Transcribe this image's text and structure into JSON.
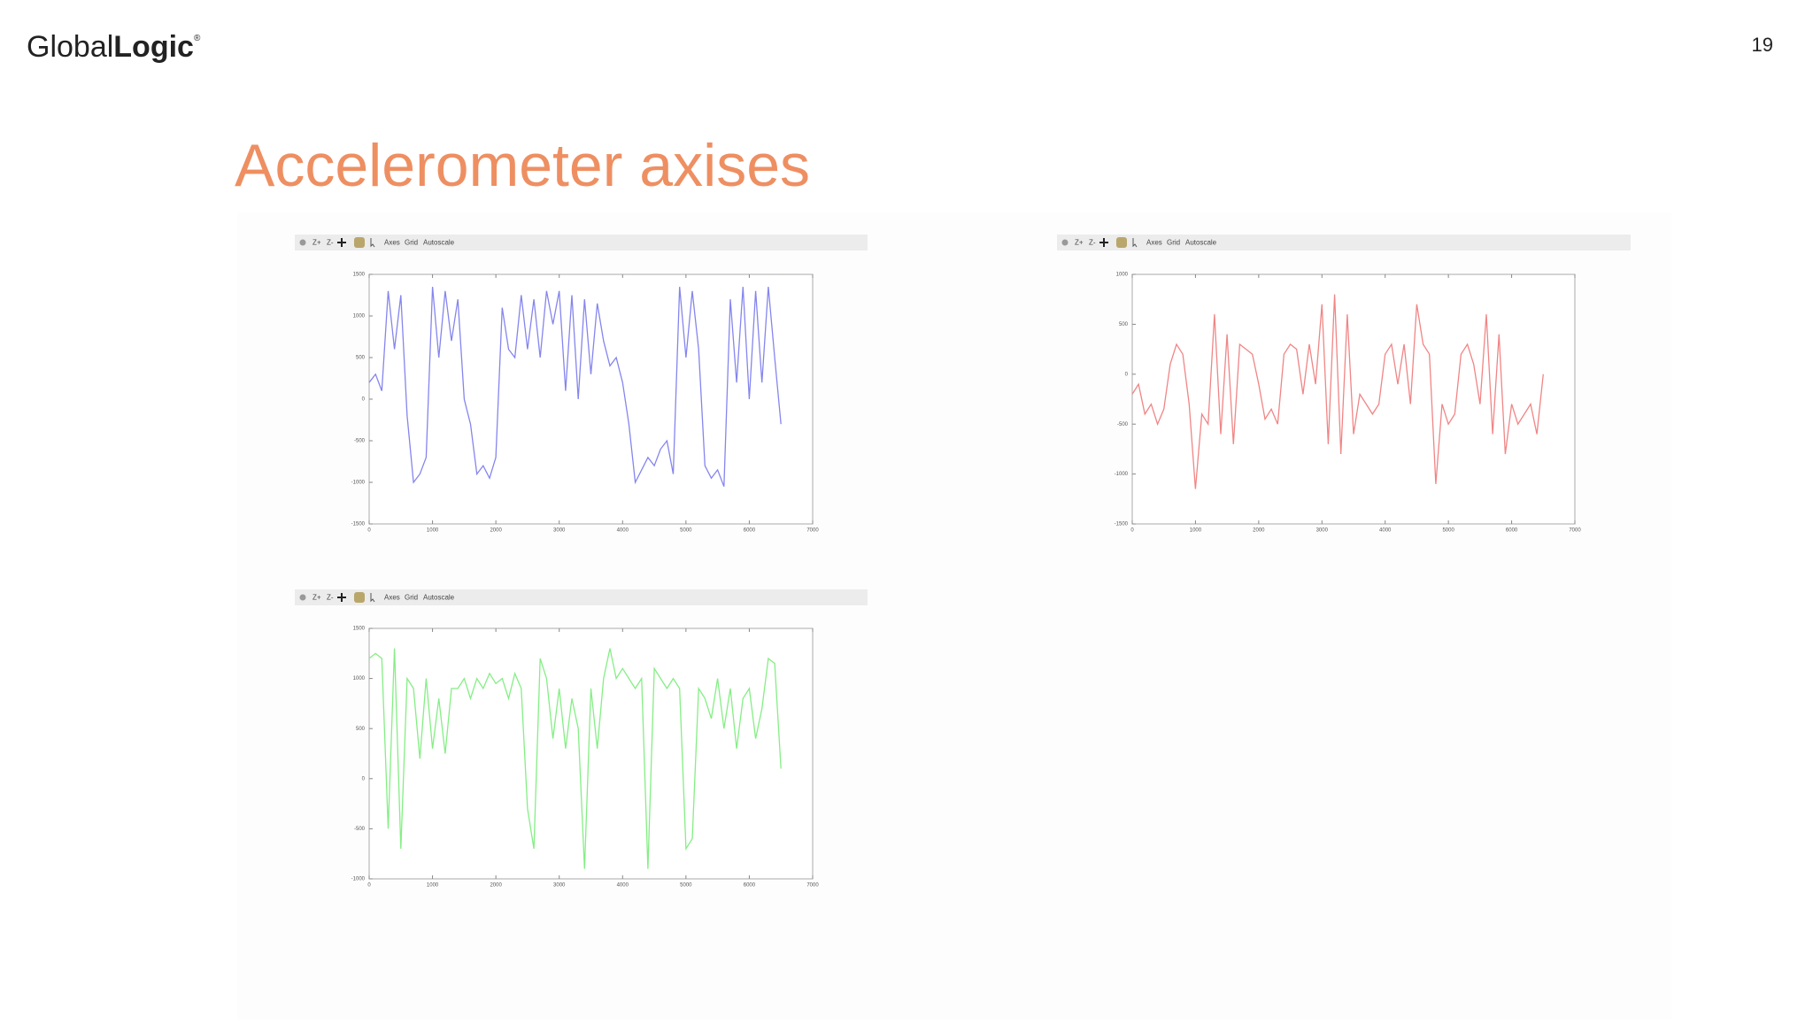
{
  "slide": {
    "logo": [
      "Global",
      "Logic"
    ],
    "logo_mark": "®",
    "page_number": "19",
    "title": "Accelerometer axises"
  },
  "chart_data": [
    {
      "type": "line",
      "toolbar": [
        "Z+",
        "Z-",
        "Axes",
        "Grid",
        "Autoscale"
      ],
      "x": [
        0,
        100,
        200,
        300,
        400,
        500,
        600,
        700,
        800,
        900,
        1000,
        1100,
        1200,
        1300,
        1400,
        1500,
        1600,
        1700,
        1800,
        1900,
        2000,
        2100,
        2200,
        2300,
        2400,
        2500,
        2600,
        2700,
        2800,
        2900,
        3000,
        3100,
        3200,
        3300,
        3400,
        3500,
        3600,
        3700,
        3800,
        3900,
        4000,
        4100,
        4200,
        4300,
        4400,
        4500,
        4600,
        4700,
        4800,
        4900,
        5000,
        5100,
        5200,
        5300,
        5400,
        5500,
        5600,
        5700,
        5800,
        5900,
        6000,
        6100,
        6200,
        6300,
        6400,
        6500
      ],
      "series": [
        {
          "color": "#8585ee",
          "values": [
            200,
            300,
            100,
            1300,
            600,
            1250,
            -200,
            -1000,
            -900,
            -700,
            1350,
            500,
            1300,
            700,
            1200,
            0,
            -300,
            -900,
            -800,
            -950,
            -700,
            1100,
            600,
            500,
            1250,
            600,
            1200,
            500,
            1300,
            900,
            1300,
            100,
            1250,
            0,
            1200,
            300,
            1150,
            700,
            400,
            500,
            200,
            -300,
            -1000,
            -850,
            -700,
            -800,
            -600,
            -500,
            -900,
            1350,
            500,
            1300,
            600,
            -800,
            -950,
            -850,
            -1050,
            1200,
            200,
            1350,
            0,
            1300,
            200,
            1350,
            500,
            -300
          ]
        }
      ],
      "xlim": [
        0,
        7000
      ],
      "xticks": [
        0,
        1000,
        2000,
        3000,
        4000,
        5000,
        6000,
        7000
      ],
      "ylim": [
        -1500,
        1500
      ],
      "yticks": [
        -1500,
        -1000,
        -500,
        0,
        500,
        1000,
        1500
      ],
      "grid": false
    },
    {
      "type": "line",
      "toolbar": [
        "Z+",
        "Z-",
        "Axes",
        "Grid",
        "Autoscale"
      ],
      "x": [
        0,
        100,
        200,
        300,
        400,
        500,
        600,
        700,
        800,
        900,
        1000,
        1100,
        1200,
        1300,
        1400,
        1500,
        1600,
        1700,
        1800,
        1900,
        2000,
        2100,
        2200,
        2300,
        2400,
        2500,
        2600,
        2700,
        2800,
        2900,
        3000,
        3100,
        3200,
        3300,
        3400,
        3500,
        3600,
        3700,
        3800,
        3900,
        4000,
        4100,
        4200,
        4300,
        4400,
        4500,
        4600,
        4700,
        4800,
        4900,
        5000,
        5100,
        5200,
        5300,
        5400,
        5500,
        5600,
        5700,
        5800,
        5900,
        6000,
        6100,
        6200,
        6300,
        6400,
        6500
      ],
      "series": [
        {
          "color": "#f08585",
          "values": [
            -200,
            -100,
            -400,
            -300,
            -500,
            -350,
            100,
            300,
            200,
            -300,
            -1150,
            -400,
            -500,
            600,
            -600,
            400,
            -700,
            300,
            250,
            200,
            -100,
            -450,
            -350,
            -500,
            200,
            300,
            250,
            -200,
            300,
            -100,
            700,
            -700,
            800,
            -800,
            600,
            -600,
            -200,
            -300,
            -400,
            -300,
            200,
            300,
            -100,
            300,
            -300,
            700,
            300,
            200,
            -1100,
            -300,
            -500,
            -400,
            200,
            300,
            100,
            -300,
            600,
            -600,
            400,
            -800,
            -300,
            -500,
            -400,
            -300,
            -600,
            0
          ]
        }
      ],
      "xlim": [
        0,
        7000
      ],
      "xticks": [
        0,
        1000,
        2000,
        3000,
        4000,
        5000,
        6000,
        7000
      ],
      "ylim": [
        -1500,
        1000
      ],
      "yticks": [
        -1500,
        -1000,
        -500,
        0,
        500,
        1000
      ],
      "grid": false
    },
    {
      "type": "line",
      "toolbar": [
        "Z+",
        "Z-",
        "Axes",
        "Grid",
        "Autoscale"
      ],
      "x": [
        0,
        100,
        200,
        300,
        400,
        500,
        600,
        700,
        800,
        900,
        1000,
        1100,
        1200,
        1300,
        1400,
        1500,
        1600,
        1700,
        1800,
        1900,
        2000,
        2100,
        2200,
        2300,
        2400,
        2500,
        2600,
        2700,
        2800,
        2900,
        3000,
        3100,
        3200,
        3300,
        3400,
        3500,
        3600,
        3700,
        3800,
        3900,
        4000,
        4100,
        4200,
        4300,
        4400,
        4500,
        4600,
        4700,
        4800,
        4900,
        5000,
        5100,
        5200,
        5300,
        5400,
        5500,
        5600,
        5700,
        5800,
        5900,
        6000,
        6100,
        6200,
        6300,
        6400,
        6500
      ],
      "series": [
        {
          "color": "#85ee85",
          "values": [
            1200,
            1250,
            1200,
            -500,
            1300,
            -700,
            1000,
            900,
            200,
            1000,
            300,
            800,
            250,
            900,
            900,
            1000,
            800,
            1000,
            900,
            1050,
            950,
            1000,
            800,
            1050,
            900,
            -300,
            -700,
            1200,
            1000,
            400,
            900,
            300,
            800,
            500,
            -900,
            900,
            300,
            1000,
            1300,
            1000,
            1100,
            1000,
            900,
            1000,
            -900,
            1100,
            1000,
            900,
            1000,
            900,
            -700,
            -600,
            900,
            800,
            600,
            1000,
            500,
            900,
            300,
            800,
            900,
            400,
            700,
            1200,
            1150,
            100
          ]
        }
      ],
      "xlim": [
        0,
        7000
      ],
      "xticks": [
        0,
        1000,
        2000,
        3000,
        4000,
        5000,
        6000,
        7000
      ],
      "ylim": [
        -1000,
        1500
      ],
      "yticks": [
        -1000,
        -500,
        0,
        500,
        1000,
        1500
      ],
      "grid": false
    }
  ]
}
